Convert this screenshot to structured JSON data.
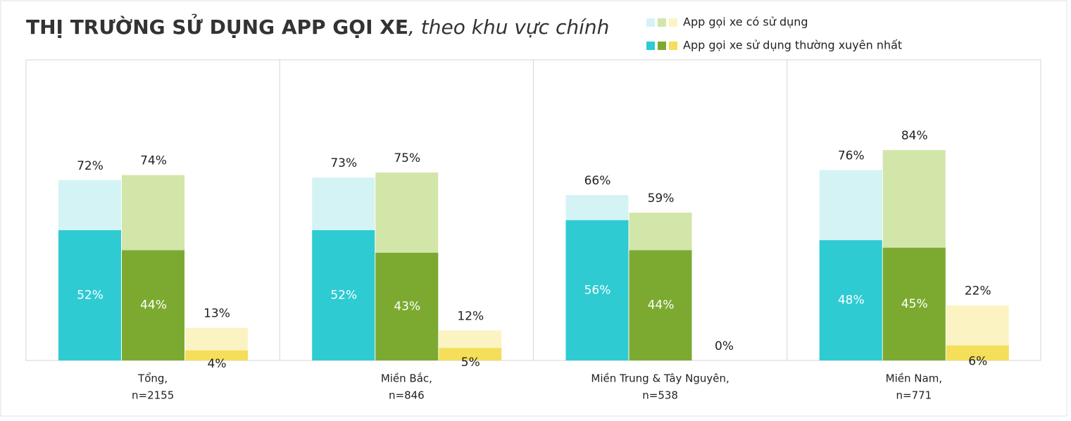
{
  "chart_data": {
    "type": "bar",
    "title": "THỊ TRƯỜNG SỬ DỤNG APP GỌI XE",
    "subtitle": ", theo khu vực chính",
    "categories": [
      "Tổng,",
      "Miền Bắc,",
      "Miền Trung & Tây Nguyên,",
      "Miền Nam,"
    ],
    "category_notes": [
      "n=2155",
      "n=846",
      "n=538",
      "n=771"
    ],
    "ylim": [
      0,
      120
    ],
    "series": [
      {
        "name": "App gọi xe có sử dụng",
        "colors": [
          "#d4f3f5",
          "#d2e6a9",
          "#fbf4c2"
        ],
        "values": [
          [
            72,
            74,
            13
          ],
          [
            73,
            75,
            12
          ],
          [
            66,
            59,
            0
          ],
          [
            76,
            84,
            22
          ]
        ],
        "value_labels": [
          [
            "72%",
            "74%",
            "13%"
          ],
          [
            "73%",
            "75%",
            "12%"
          ],
          [
            "66%",
            "59%",
            "0%"
          ],
          [
            "76%",
            "84%",
            "22%"
          ]
        ]
      },
      {
        "name": "App gọi xe sử dụng thường xuyên nhất",
        "colors": [
          "#2ecbd3",
          "#7caa31",
          "#f5de5a"
        ],
        "values": [
          [
            52,
            44,
            4
          ],
          [
            52,
            43,
            5
          ],
          [
            56,
            44,
            null
          ],
          [
            48,
            45,
            6
          ]
        ],
        "value_labels": [
          [
            "52%",
            "44%",
            "4%"
          ],
          [
            "52%",
            "43%",
            "5%"
          ],
          [
            "56%",
            "44%",
            null
          ],
          [
            "48%",
            "45%",
            "6%"
          ]
        ]
      }
    ]
  }
}
